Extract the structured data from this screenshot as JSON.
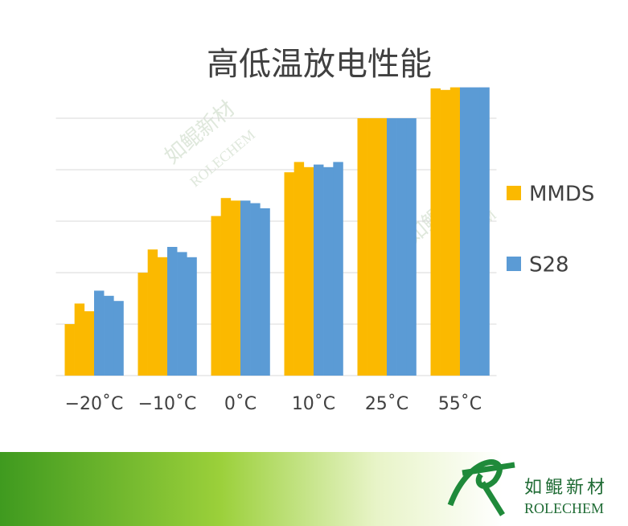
{
  "chart_data": {
    "type": "bar",
    "title": "高低温放电性能",
    "categories": [
      "−20˚C",
      "−10˚C",
      "0˚C",
      "10˚C",
      "25˚C",
      "55˚C"
    ],
    "series": [
      {
        "name": "MMDS",
        "color": "#fbb900",
        "values": [
          [
            1.0,
            1.4,
            1.25
          ],
          [
            2.0,
            2.45,
            2.3
          ],
          [
            3.1,
            3.45,
            3.4
          ],
          [
            3.95,
            4.15,
            4.05
          ],
          [
            5.0,
            5.0,
            5.0
          ],
          [
            5.58,
            5.55,
            5.6
          ]
        ]
      },
      {
        "name": "S28",
        "color": "#5b9bd5",
        "values": [
          [
            1.65,
            1.55,
            1.45
          ],
          [
            2.5,
            2.4,
            2.3
          ],
          [
            3.4,
            3.35,
            3.25
          ],
          [
            4.1,
            4.05,
            4.15
          ],
          [
            5.0,
            5.0,
            5.0
          ],
          [
            5.6,
            5.6,
            5.6
          ]
        ]
      }
    ],
    "ylim": [
      0,
      5.6
    ],
    "yticks": [
      0,
      1,
      2,
      3,
      4,
      5
    ],
    "grid": true,
    "legend": "right"
  },
  "watermark": {
    "brand": "如鲲新材",
    "name": "ROLECHEM"
  },
  "footer": {
    "brand": "如鲲新材",
    "name": "ROLECHEM"
  }
}
